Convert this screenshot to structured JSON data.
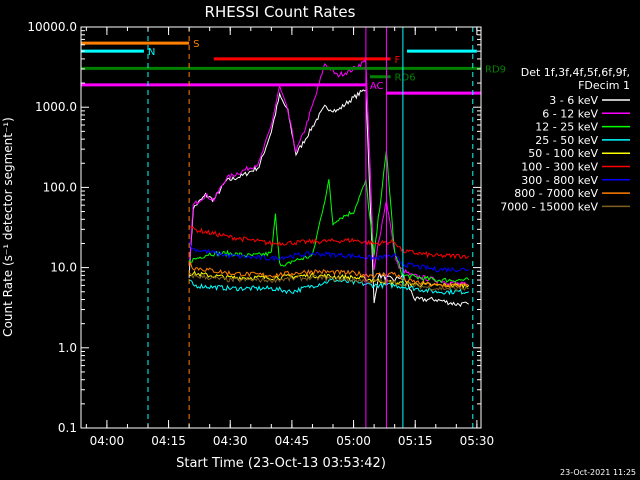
{
  "chart_data": {
    "type": "line",
    "title": "RHESSI Count Rates",
    "xlabel": "Start Time (23-Oct-13 03:53:42)",
    "ylabel": "Count Rate (s⁻¹ detector segment⁻¹)",
    "y_scale": "log",
    "ylim": [
      0.1,
      10000
    ],
    "y_ticks": [
      0.1,
      1,
      10,
      100,
      1000,
      10000
    ],
    "y_tick_labels": [
      "0.1",
      "1.0",
      "10.0",
      "100.0",
      "1000.0",
      "10000.0"
    ],
    "xlim": [
      "03:53:42",
      "05:31:00"
    ],
    "x_ticks": [
      "04:00",
      "04:15",
      "04:30",
      "04:45",
      "05:00",
      "05:15",
      "05:30"
    ],
    "grid": false,
    "legend_position": "right",
    "legend_header": [
      "Det 1f,3f,4f,5f,6f,9f,",
      "FDecim 1"
    ],
    "series": [
      {
        "name": "3 - 6 keV",
        "color": "#ffffff",
        "x": [
          "04:20",
          "04:21",
          "04:24",
          "04:26",
          "04:29",
          "04:33",
          "04:37",
          "04:40",
          "04:42",
          "04:44",
          "04:46",
          "04:48",
          "04:51",
          "04:53",
          "04:56",
          "04:59",
          "05:03",
          "05:05",
          "05:06",
          "05:10",
          "05:12",
          "05:15",
          "05:20",
          "05:25",
          "05:28"
        ],
        "y": [
          8,
          55,
          80,
          70,
          120,
          140,
          180,
          500,
          1400,
          900,
          260,
          380,
          700,
          1000,
          900,
          1200,
          1700,
          3.5,
          8,
          7,
          8,
          4,
          4,
          3.5,
          3.5
        ]
      },
      {
        "name": "6 - 12 keV",
        "color": "#ff00ff",
        "x": [
          "04:20",
          "04:21",
          "04:24",
          "04:26",
          "04:29",
          "04:33",
          "04:37",
          "04:40",
          "04:42",
          "04:44",
          "04:46",
          "04:48",
          "04:51",
          "04:53",
          "04:56",
          "04:59",
          "05:03",
          "05:05",
          "05:06",
          "05:08",
          "05:10",
          "05:11",
          "05:14",
          "05:20",
          "05:28"
        ],
        "y": [
          10,
          60,
          80,
          70,
          130,
          160,
          200,
          600,
          1800,
          900,
          280,
          500,
          1500,
          3500,
          2500,
          2800,
          3800,
          9,
          20,
          70,
          15,
          10,
          8,
          7,
          6
        ]
      },
      {
        "name": "12 - 25 keV",
        "color": "#00ff00",
        "x": [
          "04:20",
          "04:25",
          "04:30",
          "04:35",
          "04:40",
          "04:41",
          "04:42",
          "04:43",
          "04:45",
          "04:50",
          "04:54",
          "04:55",
          "04:56",
          "05:00",
          "05:03",
          "05:05",
          "05:06",
          "05:08",
          "05:10",
          "05:12",
          "05:20",
          "05:28"
        ],
        "y": [
          12,
          15,
          15,
          14,
          15,
          45,
          12,
          10,
          12,
          14,
          120,
          35,
          40,
          50,
          120,
          14,
          40,
          280,
          15,
          8,
          7,
          7
        ]
      },
      {
        "name": "25 - 50 keV",
        "color": "#00ffff",
        "x": [
          "04:20",
          "04:21",
          "04:30",
          "04:40",
          "04:45",
          "04:55",
          "05:00",
          "05:05",
          "05:10",
          "05:20",
          "05:28"
        ],
        "y": [
          7,
          6,
          5.5,
          5.5,
          5,
          7,
          6.5,
          6,
          6,
          5,
          5
        ]
      },
      {
        "name": "50 - 100 keV",
        "color": "#ffff00",
        "x": [
          "04:20",
          "04:30",
          "04:40",
          "04:50",
          "05:00",
          "05:10",
          "05:20",
          "05:28"
        ],
        "y": [
          8.5,
          7.5,
          7.5,
          8,
          7.5,
          6.5,
          6,
          6
        ]
      },
      {
        "name": "100 - 300 keV",
        "color": "#ff0000",
        "x": [
          "04:20",
          "04:21",
          "04:30",
          "04:40",
          "04:50",
          "05:00",
          "05:05",
          "05:10",
          "05:12",
          "05:20",
          "05:28"
        ],
        "y": [
          35,
          30,
          24,
          20,
          21,
          22,
          20,
          21,
          16,
          14,
          14
        ]
      },
      {
        "name": "300 - 800 keV",
        "color": "#0000ff",
        "x": [
          "04:20",
          "04:21",
          "04:30",
          "04:40",
          "04:50",
          "05:00",
          "05:05",
          "05:10",
          "05:12",
          "05:20",
          "05:28"
        ],
        "y": [
          20,
          17,
          14,
          13,
          15,
          14,
          13,
          14,
          11,
          9.5,
          9.5
        ]
      },
      {
        "name": "800 - 7000 keV",
        "color": "#ff8000",
        "x": [
          "04:20",
          "04:21",
          "04:30",
          "04:40",
          "04:50",
          "05:00",
          "05:05",
          "05:10",
          "05:12",
          "05:20",
          "05:28"
        ],
        "y": [
          12,
          10,
          8.5,
          8,
          9,
          8.5,
          8,
          8.5,
          7,
          6,
          6
        ]
      },
      {
        "name": "7000 - 15000 keV",
        "color": "#806020",
        "x": [
          "04:20",
          "04:30",
          "04:40",
          "04:50",
          "05:00",
          "05:10",
          "05:20",
          "05:28"
        ],
        "y": [
          8,
          7,
          7,
          7.5,
          7,
          6.5,
          5.5,
          5.5
        ]
      }
    ],
    "annotations": {
      "vertical_lines": [
        {
          "color": "#00ffff",
          "style": "solid",
          "x": "03:53:42"
        },
        {
          "color": "#00ffff",
          "style": "dashed",
          "x": "04:10"
        },
        {
          "color": "#ff8000",
          "style": "dashed",
          "x": "04:20"
        },
        {
          "color": "#ff00ff",
          "style": "solid",
          "x": "05:03"
        },
        {
          "color": "#ff00ff",
          "style": "solid",
          "x": "05:08"
        },
        {
          "color": "#00ffff",
          "style": "solid",
          "x": "05:12"
        },
        {
          "color": "#00ffff",
          "style": "dashed",
          "x": "05:29"
        }
      ],
      "horizontal_segments": [
        {
          "label": "N",
          "color": "#00ffff",
          "x": [
            "03:53:42",
            "04:09"
          ],
          "y": 5000
        },
        {
          "label": "",
          "color": "#00ffff",
          "x": [
            "05:13",
            "05:30"
          ],
          "y": 5000
        },
        {
          "label": "S",
          "color": "#ff8000",
          "x": [
            "03:53:42",
            "04:20"
          ],
          "y": 6300
        },
        {
          "label": "F",
          "color": "#ff0000",
          "x": [
            "04:26",
            "05:09"
          ],
          "y": 4000
        },
        {
          "label": "RD9",
          "color": "#008000",
          "x": [
            "03:53:42",
            "05:31"
          ],
          "y": 3050
        },
        {
          "label": "RD6",
          "color": "#008000",
          "x": [
            "05:04",
            "05:09"
          ],
          "y": 2400
        },
        {
          "label": "AC",
          "color": "#ff00ff",
          "x": [
            "03:53:42",
            "05:03"
          ],
          "y": 1900
        },
        {
          "label": "",
          "color": "#ff00ff",
          "x": [
            "05:08",
            "05:31"
          ],
          "y": 1500
        }
      ]
    },
    "footer": "23-Oct-2021 11:25"
  }
}
